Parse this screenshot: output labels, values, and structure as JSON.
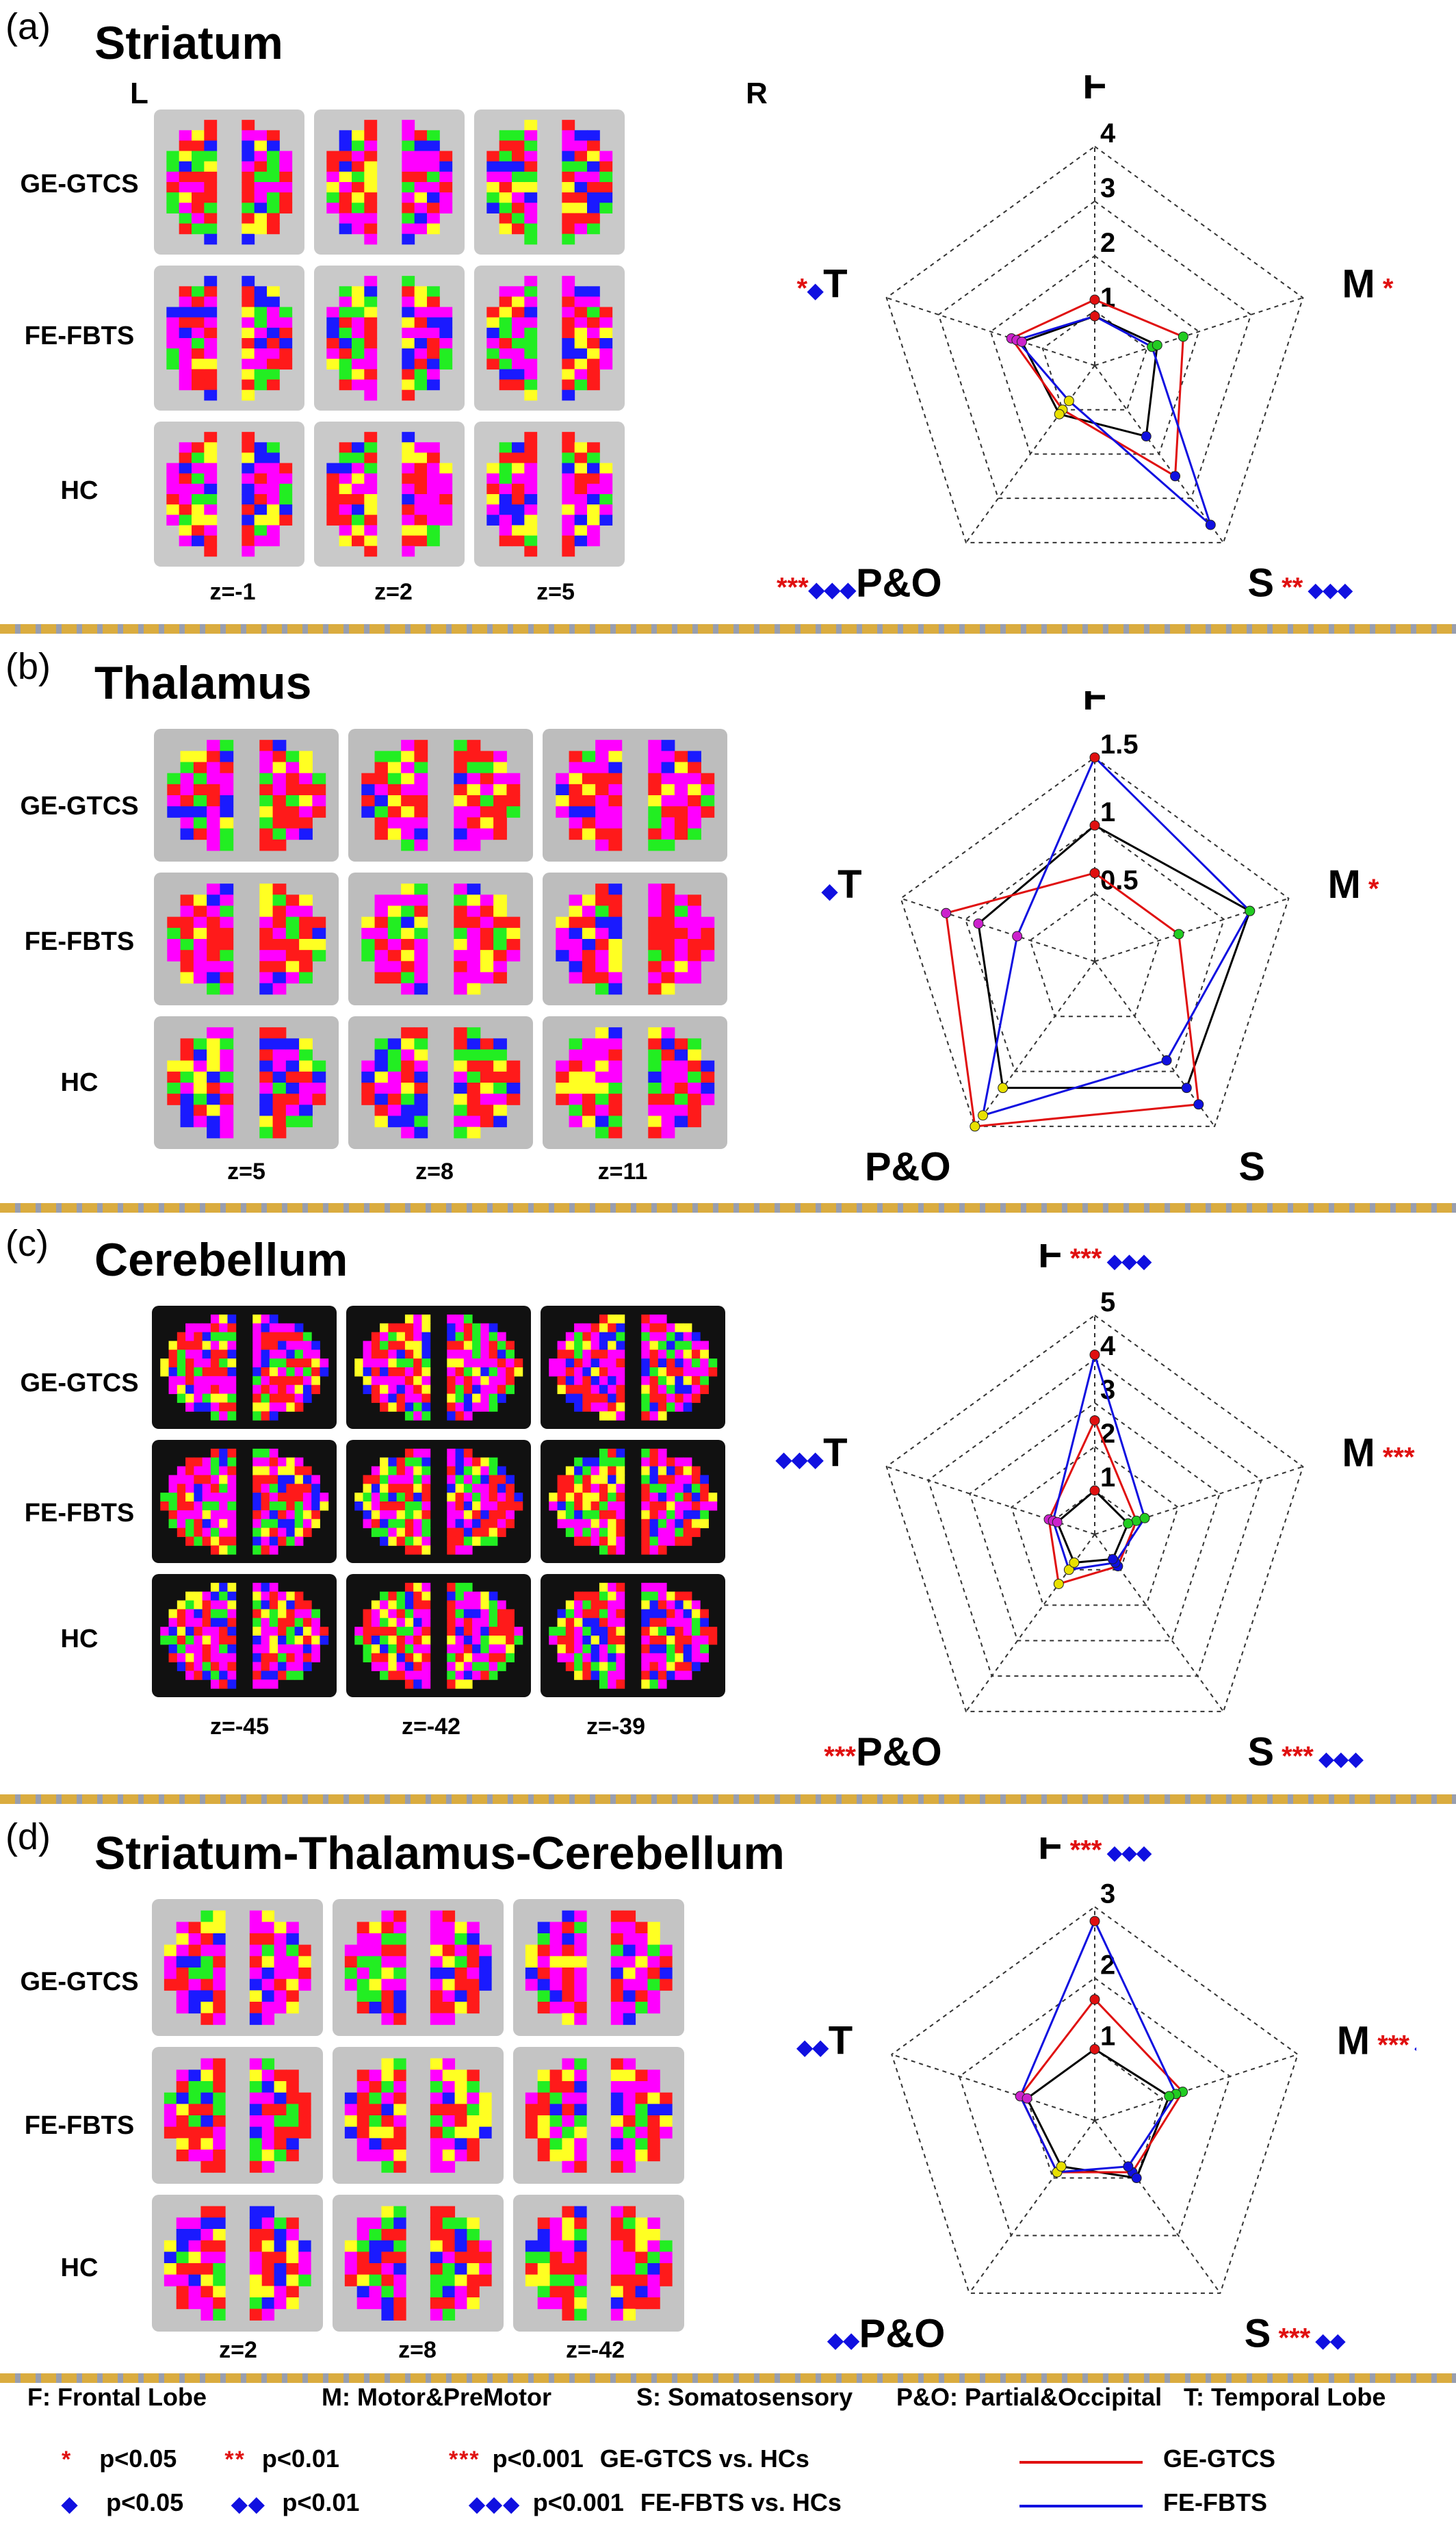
{
  "panels": [
    {
      "letter": "(a)",
      "title": "Striatum",
      "left_marker": "L",
      "right_marker": "R",
      "row_labels": [
        "GE-GTCS",
        "FE-FBTS",
        "HC"
      ],
      "z_labels": [
        "z=-1",
        "z=2",
        "z=5"
      ],
      "axis_labels": {
        "F": "F",
        "M": "M",
        "S": "S",
        "PO": "P&O",
        "T": "T"
      },
      "axis_marks": {
        "F": "",
        "M": "*",
        "S": "**",
        "PO": "***",
        "T": "*"
      },
      "axis_diamonds": {
        "F": "",
        "M": "",
        "S": "◆◆◆",
        "PO": "◆◆◆",
        "T": "◆"
      }
    },
    {
      "letter": "(b)",
      "title": "Thalamus",
      "row_labels": [
        "GE-GTCS",
        "FE-FBTS",
        "HC"
      ],
      "z_labels": [
        "z=5",
        "z=8",
        "z=11"
      ],
      "axis_labels": {
        "F": "F",
        "M": "M",
        "S": "S",
        "PO": "P&O",
        "T": "T"
      },
      "axis_marks": {
        "F": "",
        "M": "*",
        "S": "",
        "PO": "",
        "T": ""
      },
      "axis_diamonds": {
        "F": "",
        "M": "",
        "S": "",
        "PO": "",
        "T": "◆"
      }
    },
    {
      "letter": "(c)",
      "title": "Cerebellum",
      "row_labels": [
        "GE-GTCS",
        "FE-FBTS",
        "HC"
      ],
      "z_labels": [
        "z=-45",
        "z=-42",
        "z=-39"
      ],
      "axis_labels": {
        "F": "F",
        "M": "M",
        "S": "S",
        "PO": "P&O",
        "T": "T"
      },
      "axis_marks": {
        "F": "***",
        "M": "***",
        "S": "***",
        "PO": "***",
        "T": ""
      },
      "axis_diamonds": {
        "F": "◆◆◆",
        "M": "◆",
        "S": "◆◆◆",
        "PO": "",
        "T": "◆◆◆"
      }
    },
    {
      "letter": "(d)",
      "title": "Striatum-Thalamus-Cerebellum",
      "row_labels": [
        "GE-GTCS",
        "FE-FBTS",
        "HC"
      ],
      "z_labels": [
        "z=2",
        "z=8",
        "z=-42"
      ],
      "axis_labels": {
        "F": "F",
        "M": "M",
        "S": "S",
        "PO": "P&O",
        "T": "T"
      },
      "axis_marks": {
        "F": "***",
        "M": "***",
        "S": "***",
        "PO": "",
        "T": ""
      },
      "axis_diamonds": {
        "F": "◆◆◆",
        "M": "◆",
        "S": "◆◆",
        "PO": "◆◆",
        "T": "◆◆"
      }
    }
  ],
  "chart_data": [
    {
      "type": "radar",
      "panel": "(a)",
      "axes": [
        "F",
        "M",
        "S",
        "P&O",
        "T"
      ],
      "rmax": 4,
      "rings": [
        1,
        2,
        3,
        4
      ],
      "tick_labels": [
        "1",
        "2",
        "3",
        "4"
      ],
      "series": [
        {
          "name": "GE-GTCS",
          "color": "#e01010",
          "values": [
            1.2,
            1.7,
            2.5,
            1.0,
            1.6
          ]
        },
        {
          "name": "FE-FBTS",
          "color": "#1010e0",
          "values": [
            0.9,
            1.1,
            3.6,
            0.8,
            1.5
          ]
        },
        {
          "name": "HC",
          "color": "#000000",
          "values": [
            0.9,
            1.2,
            1.6,
            1.1,
            1.4
          ]
        }
      ]
    },
    {
      "type": "radar",
      "panel": "(b)",
      "axes": [
        "F",
        "M",
        "S",
        "P&O",
        "T"
      ],
      "rmax": 1.5,
      "rings": [
        0.5,
        1,
        1.5
      ],
      "tick_labels": [
        "0.5",
        "1",
        "1.5"
      ],
      "series": [
        {
          "name": "GE-GTCS",
          "color": "#e01010",
          "values": [
            0.65,
            0.65,
            1.3,
            1.5,
            1.15
          ]
        },
        {
          "name": "FE-FBTS",
          "color": "#1010e0",
          "values": [
            1.5,
            1.2,
            0.9,
            1.4,
            0.6
          ]
        },
        {
          "name": "HC",
          "color": "#000000",
          "values": [
            1.0,
            1.2,
            1.15,
            1.15,
            0.9
          ]
        }
      ]
    },
    {
      "type": "radar",
      "panel": "(c)",
      "axes": [
        "F",
        "M",
        "S",
        "P&O",
        "T"
      ],
      "rmax": 5,
      "rings": [
        1,
        2,
        3,
        4,
        5
      ],
      "tick_labels": [
        "1",
        "2",
        "3",
        "4",
        "5"
      ],
      "series": [
        {
          "name": "GE-GTCS",
          "color": "#e01010",
          "values": [
            2.6,
            1.0,
            0.9,
            1.4,
            1.1
          ]
        },
        {
          "name": "FE-FBTS",
          "color": "#1010e0",
          "values": [
            4.1,
            1.2,
            0.8,
            1.0,
            1.0
          ]
        },
        {
          "name": "HC",
          "color": "#000000",
          "values": [
            1.0,
            0.8,
            0.7,
            0.8,
            0.9
          ]
        }
      ]
    },
    {
      "type": "radar",
      "panel": "(d)",
      "axes": [
        "F",
        "M",
        "S",
        "P&O",
        "T"
      ],
      "rmax": 3,
      "rings": [
        1,
        2,
        3
      ],
      "tick_labels": [
        "1",
        "2",
        "3"
      ],
      "series": [
        {
          "name": "GE-GTCS",
          "color": "#e01010",
          "values": [
            1.7,
            1.3,
            0.9,
            0.9,
            1.1
          ]
        },
        {
          "name": "FE-FBTS",
          "color": "#1010e0",
          "values": [
            2.8,
            1.2,
            0.8,
            0.9,
            1.1
          ]
        },
        {
          "name": "HC",
          "color": "#000000",
          "values": [
            1.0,
            1.1,
            1.0,
            0.8,
            1.0
          ]
        }
      ]
    }
  ],
  "footer": {
    "abbreviations": [
      "F: Frontal Lobe",
      "M: Motor&PreMotor",
      "S: Somatosensory",
      "P&O: Partial&Occipital",
      "T: Temporal Lobe"
    ],
    "ge_row": {
      "s1": "*",
      "l1": "p<0.05",
      "s2": "**",
      "l2": "p<0.01",
      "s3": "***",
      "l3": "p<0.001",
      "desc": "GE-GTCS vs. HCs"
    },
    "fe_row": {
      "s1": "◆",
      "l1": "p<0.05",
      "s2": "◆◆",
      "l2": "p<0.01",
      "s3": "◆◆◆",
      "l3": "p<0.001",
      "desc": "FE-FBTS vs. HCs"
    },
    "legend": [
      {
        "label": "GE-GTCS",
        "color": "#e01010"
      },
      {
        "label": "FE-FBTS",
        "color": "#1010e0"
      }
    ]
  }
}
